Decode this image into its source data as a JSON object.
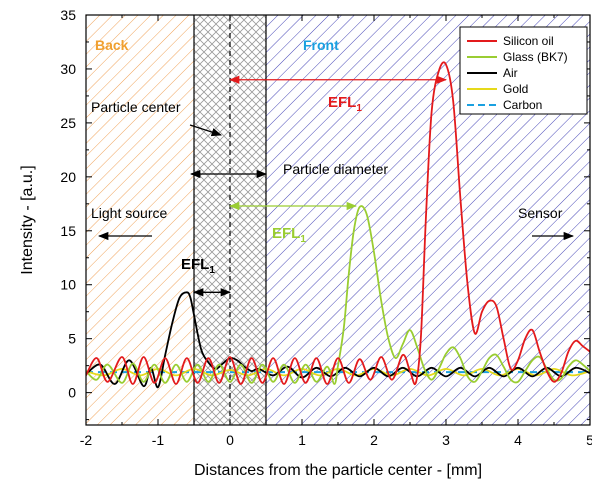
{
  "chart_data": {
    "type": "line",
    "xlabel": "Distances from the particle center - [mm]",
    "ylabel": "Intensity - [a.u.]",
    "xlim": [
      -2,
      5
    ],
    "ylim": [
      -3,
      35
    ],
    "xticks": [
      -2,
      -1,
      0,
      1,
      2,
      3,
      4,
      5
    ],
    "yticks": [
      0,
      5,
      10,
      15,
      20,
      25,
      30,
      35
    ],
    "xtick_labels": [
      "-2",
      "-1",
      "0",
      "1",
      "2",
      "3",
      "4",
      "5"
    ],
    "ytick_labels": [
      "0",
      "5",
      "10",
      "15",
      "20",
      "25",
      "30",
      "35"
    ],
    "grid": false,
    "legend_position": "top-right",
    "regions": [
      {
        "label": "Back",
        "x_range": [
          -2,
          -0.5
        ],
        "hatch_color": "#f0a35a",
        "label_color": "#f0a030"
      },
      {
        "label": "",
        "x_range": [
          -0.5,
          0.5
        ],
        "hatch_color": "#888888",
        "label_color": ""
      },
      {
        "label": "Front",
        "x_range": [
          0.5,
          5
        ],
        "hatch_color": "#4a4ab8",
        "label_color": "#1aa0e0"
      }
    ],
    "annotations": {
      "particle_center": "Particle center",
      "particle_diameter": "Particle diameter",
      "light_source": "Light source",
      "sensor": "Sensor",
      "efl_label": "EFL",
      "efl_subscript": "1"
    },
    "efl_arrows": [
      {
        "series": "Silicon oil",
        "x_from": 0,
        "x_to": 3.0,
        "y": 29.0,
        "color": "#e31a1c"
      },
      {
        "series": "Glass (BK7)",
        "x_from": 0,
        "x_to": 1.75,
        "y": 17.3,
        "color": "#9acd32"
      },
      {
        "series": "Air",
        "x_from": -0.5,
        "x_to": 0,
        "y": 9.3,
        "color": "#000000"
      }
    ],
    "series": [
      {
        "name": "Silicon oil",
        "color": "#e31a1c",
        "dash": false,
        "x": [
          -2.0,
          -1.85,
          -1.7,
          -1.5,
          -1.35,
          -1.2,
          -1.05,
          -0.9,
          -0.75,
          -0.6,
          -0.45,
          -0.3,
          -0.15,
          0.0,
          0.15,
          0.3,
          0.45,
          0.6,
          0.75,
          0.9,
          1.05,
          1.2,
          1.35,
          1.5,
          1.65,
          1.8,
          1.95,
          2.1,
          2.25,
          2.4,
          2.5,
          2.58,
          2.65,
          2.72,
          2.8,
          2.9,
          3.0,
          3.1,
          3.2,
          3.3,
          3.4,
          3.5,
          3.6,
          3.7,
          3.8,
          3.9,
          4.0,
          4.1,
          4.2,
          4.3,
          4.4,
          4.5,
          4.6,
          4.7,
          4.8,
          4.9,
          5.0
        ],
        "y": [
          1.6,
          3.2,
          1.0,
          3.3,
          0.8,
          3.3,
          0.9,
          3.2,
          0.8,
          3.2,
          0.9,
          3.2,
          0.9,
          3.3,
          0.8,
          3.2,
          0.9,
          3.2,
          0.8,
          3.2,
          0.9,
          3.2,
          0.8,
          3.2,
          0.9,
          3.1,
          1.2,
          3.3,
          1.2,
          3.5,
          2.0,
          0.9,
          5.0,
          16.0,
          26.0,
          29.8,
          30.4,
          27.0,
          18.0,
          10.0,
          5.5,
          7.5,
          8.5,
          8.0,
          5.0,
          2.2,
          3.0,
          5.0,
          5.8,
          3.8,
          2.0,
          1.0,
          1.8,
          3.8,
          4.8,
          4.3,
          3.8
        ]
      },
      {
        "name": "Glass (BK7)",
        "color": "#9acd32",
        "dash": false,
        "x": [
          -2.0,
          -1.85,
          -1.7,
          -1.5,
          -1.35,
          -1.2,
          -1.05,
          -0.9,
          -0.75,
          -0.6,
          -0.45,
          -0.3,
          -0.15,
          0.0,
          0.15,
          0.3,
          0.45,
          0.6,
          0.75,
          0.9,
          1.05,
          1.2,
          1.35,
          1.45,
          1.5,
          1.58,
          1.65,
          1.72,
          1.8,
          1.9,
          2.0,
          2.1,
          2.2,
          2.3,
          2.4,
          2.5,
          2.6,
          2.7,
          2.8,
          2.9,
          3.0,
          3.1,
          3.2,
          3.3,
          3.4,
          3.5,
          3.6,
          3.7,
          3.8,
          3.9,
          4.0,
          4.1,
          4.2,
          4.3,
          4.4,
          4.5,
          4.6,
          4.7,
          4.8,
          4.9,
          5.0
        ],
        "y": [
          2.0,
          1.2,
          2.6,
          0.9,
          2.7,
          1.0,
          2.6,
          0.9,
          2.6,
          1.0,
          2.6,
          1.0,
          2.6,
          1.0,
          2.6,
          0.9,
          2.6,
          1.0,
          2.6,
          0.9,
          2.6,
          1.0,
          2.4,
          0.8,
          2.5,
          6.0,
          11.0,
          15.0,
          17.2,
          16.5,
          13.0,
          8.5,
          5.0,
          3.2,
          4.5,
          5.8,
          4.2,
          2.2,
          1.2,
          2.2,
          3.6,
          4.2,
          3.2,
          1.5,
          1.0,
          2.0,
          3.2,
          3.5,
          2.4,
          1.2,
          1.0,
          2.0,
          3.0,
          3.3,
          2.2,
          1.2,
          1.3,
          2.4,
          3.0,
          2.6,
          2.0
        ]
      },
      {
        "name": "Air",
        "color": "#000000",
        "dash": false,
        "x": [
          -2.0,
          -1.8,
          -1.6,
          -1.4,
          -1.2,
          -1.1,
          -1.0,
          -0.9,
          -0.8,
          -0.7,
          -0.6,
          -0.55,
          -0.5,
          -0.4,
          -0.3,
          -0.2,
          -0.1,
          0.0,
          0.1,
          0.2,
          0.3,
          0.4,
          0.6,
          0.8,
          1.0,
          1.2,
          1.4,
          1.6,
          1.8,
          2.0,
          2.2,
          2.4,
          2.6,
          2.8,
          3.0,
          3.2,
          3.4,
          3.6,
          3.8,
          4.0,
          4.2,
          4.4,
          4.6,
          4.8,
          5.0
        ],
        "y": [
          1.7,
          2.6,
          0.8,
          3.0,
          0.6,
          2.3,
          0.5,
          3.5,
          6.5,
          8.8,
          9.3,
          8.8,
          7.2,
          4.0,
          2.8,
          2.2,
          2.7,
          3.2,
          3.0,
          2.4,
          2.0,
          2.2,
          1.6,
          2.4,
          1.4,
          2.3,
          1.5,
          2.3,
          1.5,
          2.3,
          1.5,
          2.3,
          1.5,
          2.3,
          1.5,
          2.3,
          1.5,
          2.3,
          1.5,
          2.3,
          1.5,
          2.3,
          1.5,
          2.3,
          1.8
        ]
      },
      {
        "name": "Gold",
        "color": "#e6d91a",
        "dash": false,
        "x": [
          -2.0,
          -1.75,
          -1.5,
          -1.25,
          -1.0,
          -0.75,
          -0.5,
          -0.25,
          0.0,
          0.25,
          0.5,
          0.75,
          1.0,
          1.25,
          1.5,
          1.75,
          2.0,
          2.25,
          2.5,
          2.75,
          3.0,
          3.25,
          3.5,
          3.75,
          4.0,
          4.25,
          4.5,
          4.75,
          5.0
        ],
        "y": [
          2.0,
          1.6,
          2.2,
          1.6,
          2.2,
          1.6,
          2.2,
          1.6,
          2.1,
          1.6,
          2.2,
          1.6,
          2.2,
          1.6,
          2.2,
          1.6,
          2.2,
          1.6,
          2.2,
          1.6,
          2.2,
          1.6,
          2.2,
          1.6,
          2.2,
          1.6,
          2.2,
          1.6,
          2.0
        ]
      },
      {
        "name": "Carbon",
        "color": "#1aa0e0",
        "dash": true,
        "x": [
          -2.0,
          -1.5,
          -1.0,
          -0.5,
          0.0,
          0.5,
          1.0,
          1.5,
          2.0,
          2.5,
          3.0,
          3.5,
          4.0,
          4.5,
          5.0
        ],
        "y": [
          1.9,
          1.9,
          1.9,
          1.9,
          1.9,
          1.9,
          1.9,
          1.9,
          1.9,
          1.9,
          1.9,
          1.9,
          1.9,
          1.9,
          1.9
        ]
      }
    ]
  }
}
